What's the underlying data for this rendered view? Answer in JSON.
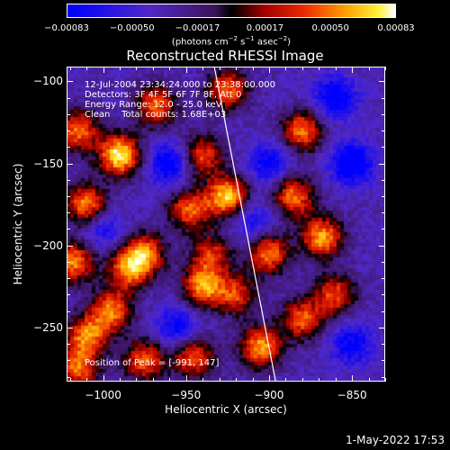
{
  "chart_data": {
    "type": "heatmap",
    "title": "Reconstructed RHESSI Image",
    "xlabel": "Heliocentric X (arcsec)",
    "ylabel": "Heliocentric Y (arcsec)",
    "xlim": [
      -1022,
      -830
    ],
    "ylim": [
      -283,
      -91
    ],
    "xticks": [
      -1000,
      -950,
      -900,
      -850
    ],
    "yticks": [
      -100,
      -150,
      -200,
      -250
    ],
    "xtick_labels": [
      "−1000",
      "−950",
      "−900",
      "−850"
    ],
    "ytick_labels": [
      "−100",
      "−150",
      "−200",
      "−250"
    ],
    "colorbar": {
      "range": [
        -0.00083,
        0.00083
      ],
      "tick_values": [
        -0.00083,
        -0.0005,
        -0.00017,
        0.00017,
        0.0005,
        0.00083
      ],
      "tick_labels": [
        "−0.00083",
        "−0.00050",
        "−0.00017",
        "0.00017",
        "0.00050",
        "0.00083"
      ],
      "unit_base": "(photons cm",
      "unit_exp1": "−2",
      "unit_mid": " s",
      "unit_exp2": "−1",
      "unit_mid2": " asec",
      "unit_exp3": "−2",
      "unit_end": ")"
    },
    "limb_line": {
      "from": [
        -933,
        -91
      ],
      "to": [
        -896,
        -283
      ]
    },
    "peak": [
      -991,
      147
    ],
    "blobs": [
      {
        "x": -990,
        "y": -145,
        "v": 0.0008
      },
      {
        "x": -1015,
        "y": -130,
        "v": 0.0005
      },
      {
        "x": -968,
        "y": -115,
        "v": 0.00045
      },
      {
        "x": -1010,
        "y": -175,
        "v": 0.00055
      },
      {
        "x": -1018,
        "y": -210,
        "v": 0.00055
      },
      {
        "x": -975,
        "y": -205,
        "v": 0.0005
      },
      {
        "x": -985,
        "y": -215,
        "v": 0.00045
      },
      {
        "x": -948,
        "y": -178,
        "v": 0.00045
      },
      {
        "x": -925,
        "y": -170,
        "v": 0.0007
      },
      {
        "x": -940,
        "y": -145,
        "v": 0.0004
      },
      {
        "x": -925,
        "y": -105,
        "v": 0.00045
      },
      {
        "x": -880,
        "y": -130,
        "v": 0.0005
      },
      {
        "x": -885,
        "y": -170,
        "v": 0.0005
      },
      {
        "x": -868,
        "y": -195,
        "v": 0.0006
      },
      {
        "x": -900,
        "y": -205,
        "v": 0.0005
      },
      {
        "x": -940,
        "y": -225,
        "v": 0.00055
      },
      {
        "x": -880,
        "y": -245,
        "v": 0.00045
      },
      {
        "x": -860,
        "y": -230,
        "v": 0.0004
      },
      {
        "x": -1010,
        "y": -255,
        "v": 0.0005
      },
      {
        "x": -995,
        "y": -240,
        "v": 0.0005
      },
      {
        "x": -975,
        "y": -270,
        "v": 0.00045
      },
      {
        "x": -1015,
        "y": -275,
        "v": 0.00045
      },
      {
        "x": -945,
        "y": -268,
        "v": 0.00045
      },
      {
        "x": -905,
        "y": -262,
        "v": 0.0006
      },
      {
        "x": -920,
        "y": -230,
        "v": 0.00035
      },
      {
        "x": -935,
        "y": -205,
        "v": 0.0003
      },
      {
        "x": -960,
        "y": -150,
        "v": -0.0006
      },
      {
        "x": -900,
        "y": -150,
        "v": -0.0005
      },
      {
        "x": -850,
        "y": -150,
        "v": -0.0007
      },
      {
        "x": -860,
        "y": -110,
        "v": -0.0006
      },
      {
        "x": -955,
        "y": -250,
        "v": -0.0005
      },
      {
        "x": -850,
        "y": -260,
        "v": -0.0005
      },
      {
        "x": -1000,
        "y": -190,
        "v": -0.0004
      },
      {
        "x": -910,
        "y": -185,
        "v": -0.0004
      }
    ],
    "blob_sigma": 9,
    "pixel_size": 4
  },
  "info": {
    "line1": "12-Jul-2004 23:34:24.000 to 23:38:00.000",
    "line2": "Detectors: 3F 4F 5F 6F 7F 8F, Att 0",
    "line3": "Energy Range: 12.0 - 25.0 keV",
    "line4": "Clean    Total counts: 1.68E+03",
    "peak": "Position of Peak = [-991, 147]"
  },
  "timestamp": "1-May-2022 17:53"
}
